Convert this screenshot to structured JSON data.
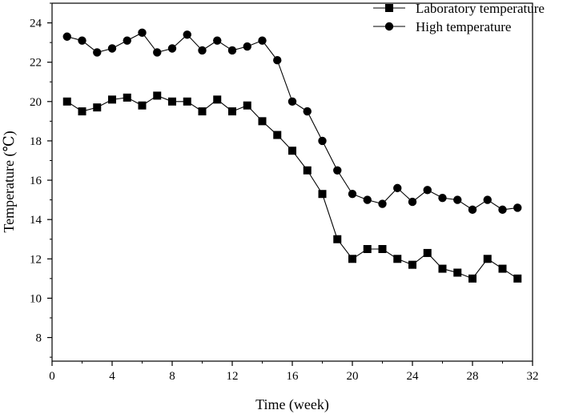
{
  "chart_data": {
    "type": "line",
    "title": "",
    "xlabel": "Time (week)",
    "ylabel": "Temperature (℃)",
    "xlim": [
      0,
      32
    ],
    "ylim": [
      6.8,
      25
    ],
    "x_ticks": [
      0,
      4,
      8,
      12,
      16,
      20,
      24,
      28,
      32
    ],
    "y_ticks": [
      8,
      10,
      12,
      14,
      16,
      18,
      20,
      22,
      24
    ],
    "x_tick_labels": [
      "0",
      "4",
      "8",
      "12",
      "16",
      "20",
      "24",
      "28",
      "32"
    ],
    "y_tick_labels": [
      "8",
      "10",
      "12",
      "14",
      "16",
      "18",
      "20",
      "22",
      "24"
    ],
    "grid": false,
    "legend_position": "top-right",
    "x": [
      1,
      2,
      3,
      4,
      5,
      6,
      7,
      8,
      9,
      10,
      11,
      12,
      13,
      14,
      15,
      16,
      17,
      18,
      19,
      20,
      21,
      22,
      23,
      24,
      25,
      26,
      27,
      28,
      29,
      30,
      31
    ],
    "series": [
      {
        "name": "Laboratory temperature",
        "marker": "square",
        "color": "#000000",
        "values": [
          20.0,
          19.5,
          19.7,
          20.1,
          20.2,
          19.8,
          20.3,
          20.0,
          20.0,
          19.5,
          20.1,
          19.5,
          19.8,
          19.0,
          18.3,
          17.5,
          16.5,
          15.3,
          13.0,
          12.0,
          12.5,
          12.5,
          12.0,
          11.7,
          12.3,
          11.5,
          11.3,
          11.0,
          12.0,
          11.5,
          11.0
        ]
      },
      {
        "name": "High temperature",
        "marker": "circle",
        "color": "#000000",
        "values": [
          23.3,
          23.1,
          22.5,
          22.7,
          23.1,
          23.5,
          22.5,
          22.7,
          23.4,
          22.6,
          23.1,
          22.6,
          22.8,
          23.1,
          22.1,
          20.0,
          19.5,
          18.0,
          16.5,
          15.3,
          15.0,
          14.8,
          15.6,
          14.9,
          15.5,
          15.1,
          15.0,
          14.5,
          15.0,
          14.5,
          14.6
        ]
      }
    ]
  }
}
